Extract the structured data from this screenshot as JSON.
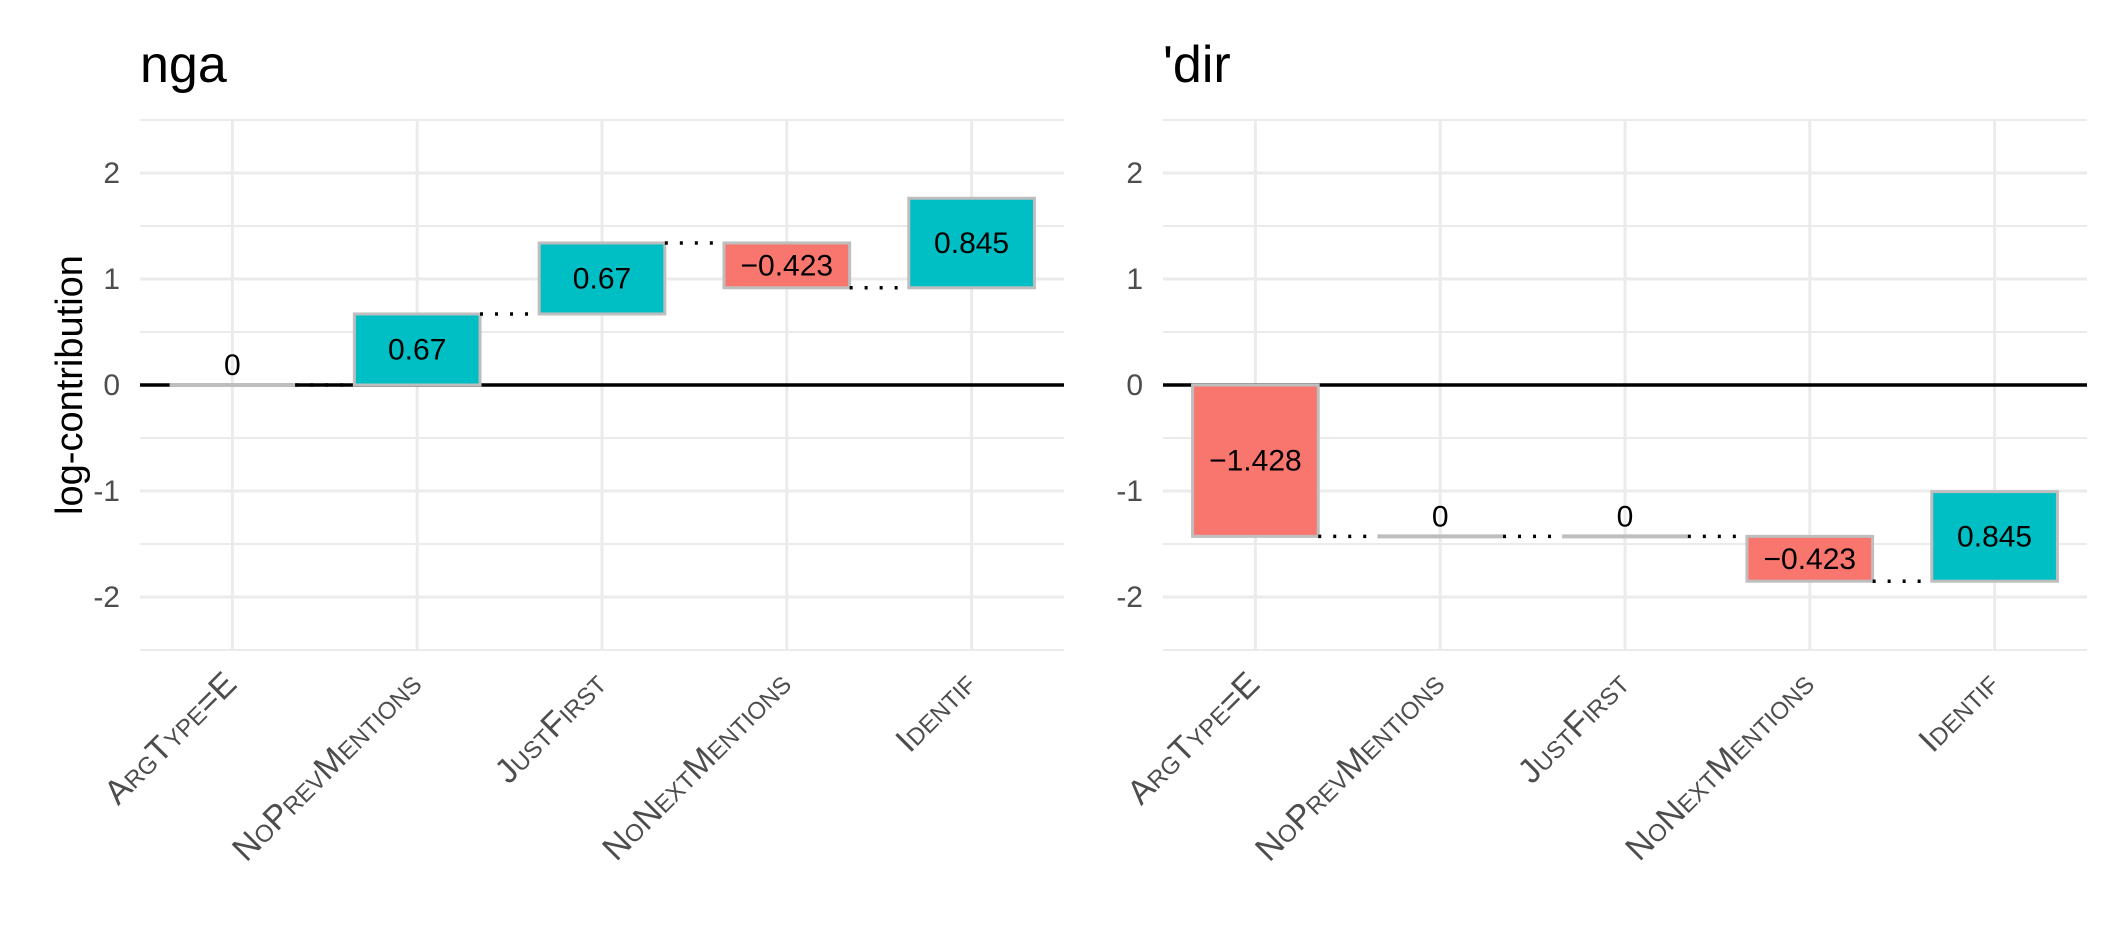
{
  "y_axis_label": "log-contribution",
  "colors": {
    "positive": "#00BFC4",
    "negative": "#F8766D",
    "zero": "#BEBEBE",
    "border": "#BEBEBE",
    "grid": "#EBEBEB",
    "connector": "#000000"
  },
  "chart_data": [
    {
      "type": "bar",
      "subtype": "waterfall",
      "title": "nga",
      "categories": [
        "ArgType=E",
        "NoPrevMentions",
        "JustFirst",
        "NoNextMentions",
        "Identif"
      ],
      "values": [
        0,
        0.67,
        0.67,
        -0.423,
        0.845
      ],
      "value_labels": [
        "0",
        "0.67",
        "0.67",
        "−0.423",
        "0.845"
      ],
      "ylabel": "log-contribution",
      "ylim": [
        -2.5,
        2.5
      ],
      "yticks": [
        2,
        1,
        0,
        -1,
        -2
      ],
      "ytick_labels": [
        "2",
        "1",
        "0",
        "-1",
        "-2"
      ],
      "grid": true
    },
    {
      "type": "bar",
      "subtype": "waterfall",
      "title": "'dir",
      "categories": [
        "ArgType=E",
        "NoPrevMentions",
        "JustFirst",
        "NoNextMentions",
        "Identif"
      ],
      "values": [
        -1.428,
        0,
        0,
        -0.423,
        0.845
      ],
      "value_labels": [
        "−1.428",
        "0",
        "0",
        "−0.423",
        "0.845"
      ],
      "ylabel": "",
      "ylim": [
        -2.5,
        2.5
      ],
      "yticks": [
        2,
        1,
        0,
        -1,
        -2
      ],
      "ytick_labels": [
        "2",
        "1",
        "0",
        "-1",
        "-2"
      ],
      "grid": true
    }
  ]
}
